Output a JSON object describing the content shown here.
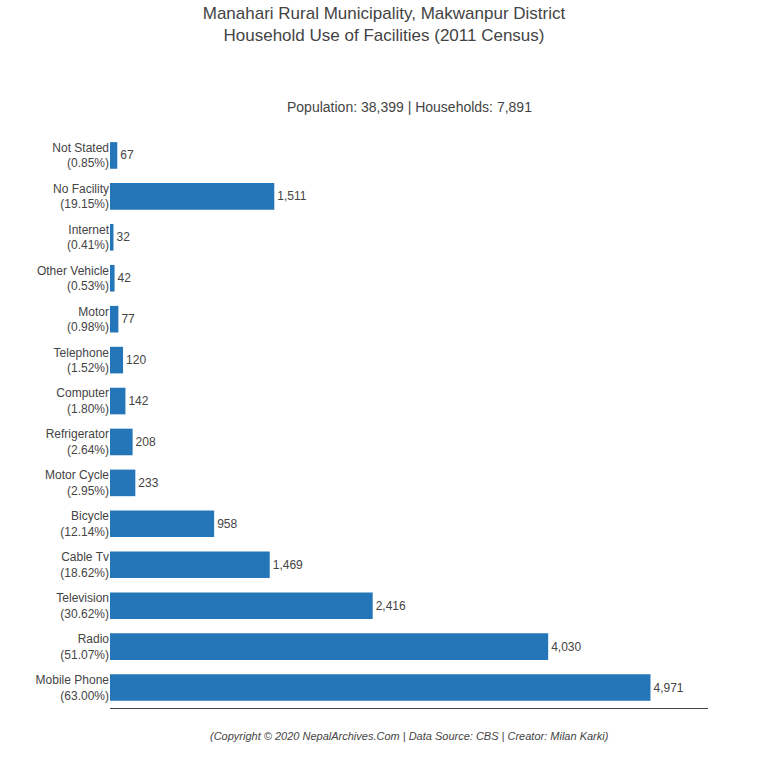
{
  "chart_data": {
    "type": "bar",
    "orientation": "horizontal",
    "title": "Manahari Rural Municipality, Makwanpur District\nHousehold Use of Facilities (2011 Census)",
    "subtitle": "Population: 38,399 | Households: 7,891",
    "footer": "(Copyright © 2020 NepalArchives.Com | Data Source: CBS | Creator: Milan Karki)",
    "categories": [
      "Not Stated\n(0.85%)",
      "No Facility\n(19.15%)",
      "Internet\n(0.41%)",
      "Other Vehicle\n(0.53%)",
      "Motor\n(0.98%)",
      "Telephone\n(1.52%)",
      "Computer\n(1.80%)",
      "Refrigerator\n(2.64%)",
      "Motor Cycle\n(2.95%)",
      "Bicycle\n(12.14%)",
      "Cable Tv\n(18.62%)",
      "Television\n(30.62%)",
      "Radio\n(51.07%)",
      "Mobile Phone\n(63.00%)"
    ],
    "values": [
      67,
      1511,
      32,
      42,
      77,
      120,
      142,
      208,
      233,
      958,
      1469,
      2416,
      4030,
      4971
    ],
    "value_labels": [
      "67",
      "1,511",
      "32",
      "42",
      "77",
      "120",
      "142",
      "208",
      "233",
      "958",
      "1,469",
      "2,416",
      "4,030",
      "4,971"
    ],
    "color": "#2576b8",
    "xlim": [
      0,
      5500
    ],
    "data_labels": true,
    "tick_labels": "y",
    "grid": false
  }
}
